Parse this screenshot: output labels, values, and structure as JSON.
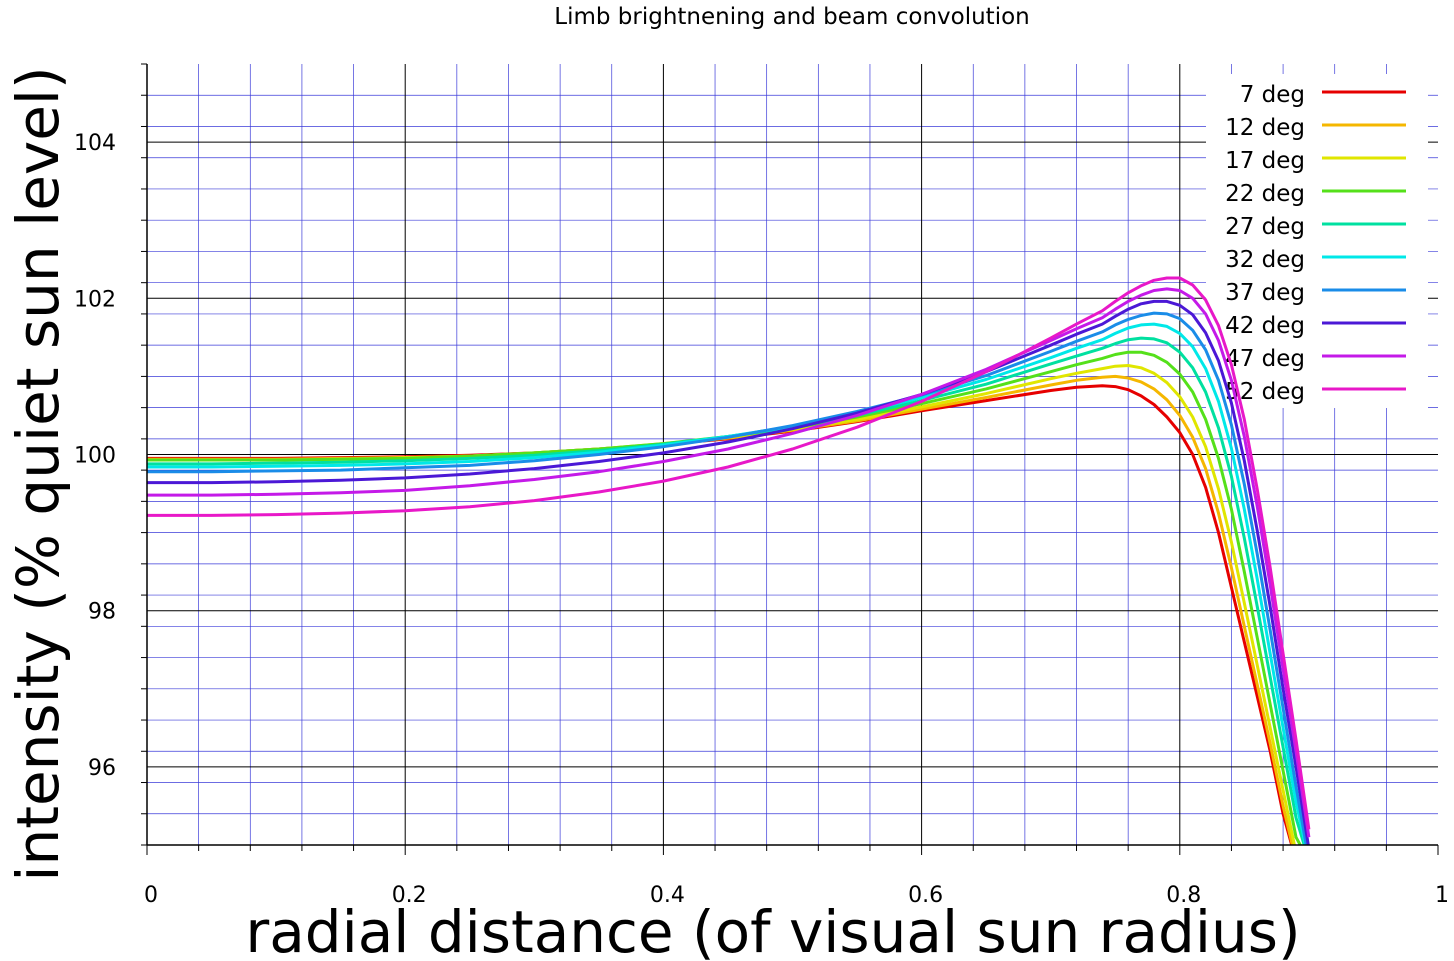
{
  "chart_data": {
    "type": "line",
    "title": "Limb brightnening and beam convolution",
    "xlabel": "radial distance (of visual sun radius)",
    "ylabel": "intensity (% quiet sun level)",
    "xlim": [
      0,
      1
    ],
    "ylim": [
      95,
      105
    ],
    "x_ticks": [
      0,
      0.2,
      0.4,
      0.6,
      0.8,
      1
    ],
    "x_tick_labels": [
      "0",
      "0.2",
      "0.4",
      "0.6",
      "0.8",
      "1"
    ],
    "y_ticks": [
      96,
      98,
      100,
      102,
      104
    ],
    "y_tick_labels": [
      "96",
      "98",
      "100",
      "102",
      "104"
    ],
    "grid": true,
    "grid_color": "#3b3bd9",
    "legend_position": "top-right",
    "x": [
      0,
      0.05,
      0.1,
      0.15,
      0.2,
      0.25,
      0.3,
      0.35,
      0.4,
      0.45,
      0.5,
      0.55,
      0.6,
      0.65,
      0.7,
      0.72,
      0.74,
      0.75,
      0.76,
      0.77,
      0.78,
      0.79,
      0.8,
      0.81,
      0.82,
      0.83,
      0.84,
      0.85,
      0.86,
      0.87,
      0.88,
      0.89,
      0.9
    ],
    "series": [
      {
        "name": "7 deg",
        "color": "#e60000",
        "values": [
          99.95,
          99.95,
          99.95,
          99.96,
          99.97,
          99.99,
          100.02,
          100.07,
          100.13,
          100.2,
          100.3,
          100.42,
          100.56,
          100.69,
          100.82,
          100.86,
          100.88,
          100.87,
          100.83,
          100.75,
          100.64,
          100.48,
          100.28,
          100.0,
          99.58,
          99.0,
          98.3,
          97.6,
          96.9,
          96.2,
          95.4,
          94.7,
          94.0
        ]
      },
      {
        "name": "12 deg",
        "color": "#f5b700",
        "values": [
          99.94,
          99.94,
          99.94,
          99.95,
          99.96,
          99.98,
          100.02,
          100.07,
          100.13,
          100.21,
          100.31,
          100.43,
          100.58,
          100.73,
          100.89,
          100.95,
          100.99,
          101.0,
          100.98,
          100.93,
          100.84,
          100.7,
          100.5,
          100.22,
          99.82,
          99.25,
          98.55,
          97.8,
          97.05,
          96.3,
          95.5,
          94.75,
          94.0
        ]
      },
      {
        "name": "17 deg",
        "color": "#e0e600",
        "values": [
          99.93,
          99.93,
          99.93,
          99.94,
          99.96,
          99.98,
          100.02,
          100.07,
          100.14,
          100.22,
          100.32,
          100.45,
          100.61,
          100.78,
          100.97,
          101.04,
          101.1,
          101.13,
          101.14,
          101.11,
          101.04,
          100.92,
          100.74,
          100.48,
          100.1,
          99.56,
          98.88,
          98.1,
          97.3,
          96.5,
          95.7,
          94.9,
          94.1
        ]
      },
      {
        "name": "22 deg",
        "color": "#55e01a",
        "values": [
          99.93,
          99.93,
          99.93,
          99.94,
          99.95,
          99.98,
          100.02,
          100.07,
          100.14,
          100.23,
          100.34,
          100.48,
          100.65,
          100.84,
          101.06,
          101.15,
          101.23,
          101.28,
          101.31,
          101.31,
          101.27,
          101.18,
          101.03,
          100.8,
          100.45,
          99.95,
          99.3,
          98.5,
          97.65,
          96.8,
          95.95,
          95.1,
          94.2
        ]
      },
      {
        "name": "27 deg",
        "color": "#00e0a0",
        "values": [
          99.88,
          99.88,
          99.89,
          99.9,
          99.92,
          99.95,
          99.99,
          100.05,
          100.13,
          100.23,
          100.35,
          100.5,
          100.69,
          100.9,
          101.16,
          101.26,
          101.36,
          101.42,
          101.47,
          101.49,
          101.48,
          101.43,
          101.31,
          101.11,
          100.8,
          100.34,
          99.72,
          98.93,
          98.05,
          97.15,
          96.25,
          95.35,
          94.4
        ]
      },
      {
        "name": "32 deg",
        "color": "#00e8e8",
        "values": [
          99.84,
          99.84,
          99.85,
          99.86,
          99.88,
          99.91,
          99.96,
          100.03,
          100.12,
          100.23,
          100.36,
          100.53,
          100.73,
          100.96,
          101.24,
          101.36,
          101.47,
          101.55,
          101.62,
          101.66,
          101.67,
          101.64,
          101.55,
          101.38,
          101.1,
          100.68,
          100.08,
          99.3,
          98.4,
          97.45,
          96.5,
          95.55,
          94.6
        ]
      },
      {
        "name": "37 deg",
        "color": "#1a8ce8",
        "values": [
          99.78,
          99.78,
          99.79,
          99.8,
          99.83,
          99.86,
          99.92,
          100.0,
          100.1,
          100.22,
          100.37,
          100.55,
          100.76,
          101.01,
          101.32,
          101.45,
          101.57,
          101.66,
          101.73,
          101.78,
          101.81,
          101.8,
          101.74,
          101.59,
          101.34,
          100.95,
          100.38,
          99.62,
          98.72,
          97.75,
          96.75,
          95.75,
          94.75
        ]
      },
      {
        "name": "42 deg",
        "color": "#4b18d6",
        "values": [
          99.64,
          99.64,
          99.65,
          99.67,
          99.7,
          99.75,
          99.82,
          99.91,
          100.02,
          100.16,
          100.33,
          100.53,
          100.77,
          101.06,
          101.4,
          101.54,
          101.67,
          101.77,
          101.86,
          101.93,
          101.96,
          101.96,
          101.91,
          101.79,
          101.56,
          101.2,
          100.66,
          99.92,
          99.02,
          98.05,
          97.0,
          96.0,
          94.95
        ]
      },
      {
        "name": "47 deg",
        "color": "#c41ae8",
        "values": [
          99.48,
          99.48,
          99.49,
          99.51,
          99.54,
          99.6,
          99.68,
          99.78,
          99.91,
          100.07,
          100.27,
          100.5,
          100.77,
          101.09,
          101.46,
          101.61,
          101.75,
          101.86,
          101.96,
          102.04,
          102.1,
          102.12,
          102.1,
          102.0,
          101.8,
          101.46,
          100.95,
          100.23,
          99.33,
          98.33,
          97.25,
          96.2,
          95.1
        ]
      },
      {
        "name": "52 deg",
        "color": "#e818c8",
        "values": [
          99.22,
          99.22,
          99.23,
          99.25,
          99.28,
          99.33,
          99.41,
          99.52,
          99.66,
          99.84,
          100.07,
          100.35,
          100.68,
          101.06,
          101.49,
          101.67,
          101.84,
          101.96,
          102.07,
          102.16,
          102.23,
          102.26,
          102.26,
          102.17,
          101.98,
          101.65,
          101.15,
          100.45,
          99.55,
          98.55,
          97.45,
          96.35,
          95.2
        ]
      }
    ]
  }
}
